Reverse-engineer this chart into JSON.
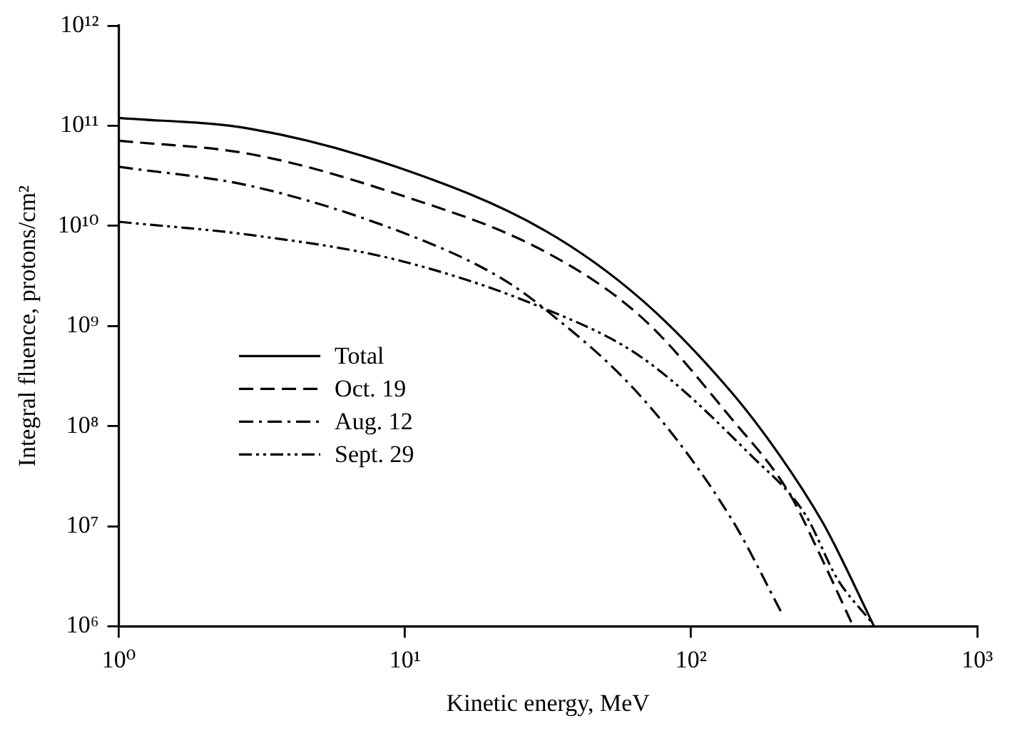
{
  "chart_data": {
    "type": "line",
    "xlabel": "Kinetic energy, MeV",
    "ylabel": "Integral fluence, protons/cm²",
    "log": "xy",
    "xlim": [
      1,
      1000
    ],
    "xticks": [
      {
        "value": 1,
        "label": "10⁰"
      },
      {
        "value": 10,
        "label": "10¹"
      },
      {
        "value": 100,
        "label": "10²"
      },
      {
        "value": 1000,
        "label": "10³"
      }
    ],
    "ylim": [
      1000000,
      1000000000000
    ],
    "yticks": [
      {
        "value": 1000000,
        "label": "10⁶"
      },
      {
        "value": 10000000,
        "label": "10⁷"
      },
      {
        "value": 100000000,
        "label": "10⁸"
      },
      {
        "value": 1000000000,
        "label": "10⁹"
      },
      {
        "value": 10000000000,
        "label": "10¹⁰"
      },
      {
        "value": 100000000000,
        "label": "10¹¹"
      },
      {
        "value": 1000000000000,
        "label": "10¹²"
      }
    ],
    "grid": false,
    "legend": "left",
    "marker": "none",
    "series": [
      {
        "name": "Total",
        "color": "#000000",
        "line_style": "solid",
        "x": [
          1,
          2.9,
          9.3,
          30.6,
          67.6,
          138,
          204,
          288,
          324,
          436
        ],
        "values": [
          120000000000.0,
          93000000000.0,
          39000000000.0,
          9100000000.0,
          1800000000.0,
          220000000.0,
          51000000.0,
          11000000.0,
          5800000.0,
          1000000.0
        ]
      },
      {
        "name": "Oct. 19",
        "color": "#000000",
        "line_style": "dashed",
        "x": [
          1,
          2.9,
          9.3,
          30.6,
          67.6,
          138,
          219,
          282,
          363
        ],
        "values": [
          71000000000.0,
          52000000000.0,
          21000000000.0,
          5600000000.0,
          1200000000.0,
          120000000.0,
          22000000.0,
          5200000.0,
          1100000.0
        ]
      },
      {
        "name": "Aug. 12",
        "color": "#000000",
        "line_style": "dashdot",
        "x": [
          1,
          2.9,
          9.3,
          20.9,
          30.6,
          67.6,
          138,
          209
        ],
        "values": [
          39000000000.0,
          25000000000.0,
          9100000000.0,
          3200000000.0,
          1500000000.0,
          190000000.0,
          12000000.0,
          1300000.0
        ]
      },
      {
        "name": "Sept. 29",
        "color": "#000000",
        "line_style": "dashdotdot",
        "x": [
          1,
          2.9,
          9.3,
          30.6,
          67.6,
          162,
          251,
          324,
          427
        ],
        "values": [
          11000000000.0,
          8100000000.0,
          4600000000.0,
          1500000000.0,
          480000000.0,
          51000000.0,
          13000000.0,
          3000000.0,
          1100000.0
        ]
      }
    ]
  }
}
